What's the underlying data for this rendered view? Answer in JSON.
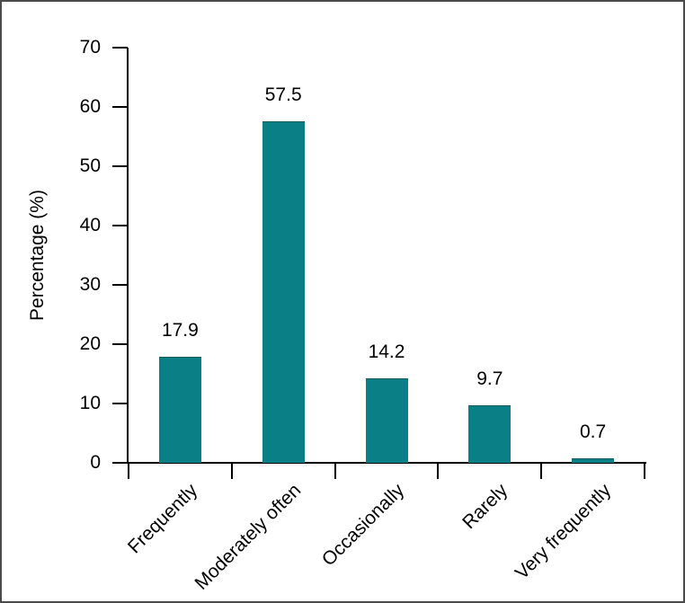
{
  "figure": {
    "background_color": "#ffffff",
    "border_color": "#4a4a4a",
    "axis_color": "#000000",
    "text_color": "#000000"
  },
  "chart_data": {
    "type": "bar",
    "title": "",
    "xlabel": "",
    "ylabel": "Percentage (%)",
    "categories": [
      "Frequently",
      "Moderately often",
      "Occasionally",
      "Rarely",
      "Very frequently"
    ],
    "values": [
      17.9,
      57.5,
      14.2,
      9.7,
      0.7
    ],
    "value_labels": [
      "17.9",
      "57.5",
      "14.2",
      "9.7",
      "0.7"
    ],
    "ylim": [
      0,
      70
    ],
    "yticks": [
      0,
      10,
      20,
      30,
      40,
      50,
      60,
      70
    ],
    "ytick_labels": [
      "0",
      "10",
      "20",
      "30",
      "40",
      "50",
      "60",
      "70"
    ],
    "bar_color": "#0a8086",
    "grid": false,
    "legend": null,
    "category_label_rotation_deg": -45
  }
}
